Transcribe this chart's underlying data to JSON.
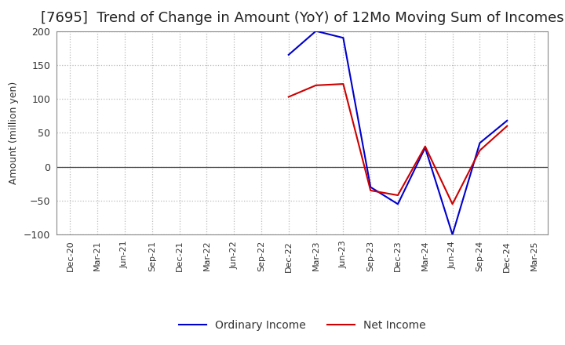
{
  "title": "[7695]  Trend of Change in Amount (YoY) of 12Mo Moving Sum of Incomes",
  "ylabel": "Amount (million yen)",
  "background_color": "#ffffff",
  "axes_bg_color": "#ffffff",
  "grid_color": "#bbbbbb",
  "title_fontsize": 13,
  "x_labels": [
    "Dec-20",
    "Mar-21",
    "Jun-21",
    "Sep-21",
    "Dec-21",
    "Mar-22",
    "Jun-22",
    "Sep-22",
    "Dec-22",
    "Mar-23",
    "Jun-23",
    "Sep-23",
    "Dec-23",
    "Mar-24",
    "Jun-24",
    "Sep-24",
    "Dec-24",
    "Mar-25"
  ],
  "ordinary_income": [
    null,
    null,
    null,
    null,
    null,
    null,
    null,
    null,
    165,
    200,
    190,
    -30,
    -55,
    28,
    -100,
    35,
    68,
    null
  ],
  "net_income": [
    null,
    null,
    null,
    null,
    null,
    null,
    null,
    null,
    103,
    120,
    122,
    -35,
    -42,
    30,
    -55,
    24,
    60,
    null
  ],
  "ylim": [
    -100,
    200
  ],
  "yticks": [
    -100,
    -50,
    0,
    50,
    100,
    150,
    200
  ],
  "ordinary_color": "#0000cc",
  "net_color": "#cc0000",
  "legend_labels": [
    "Ordinary Income",
    "Net Income"
  ],
  "linewidth": 1.5
}
